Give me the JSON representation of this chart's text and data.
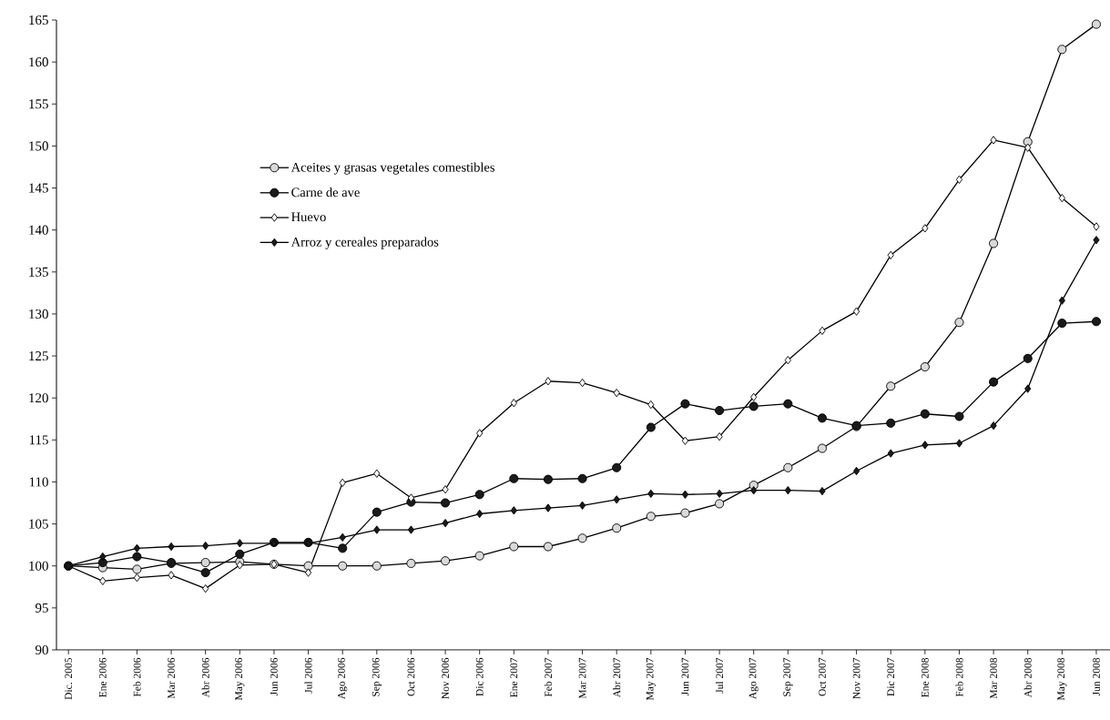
{
  "chart_data": {
    "type": "line",
    "categories": [
      "Dic. 2005",
      "Ene 2006",
      "Feb 2006",
      "Mar 2006",
      "Abr 2006",
      "May 2006",
      "Jun 2006",
      "Jul 2006",
      "Ago 2006",
      "Sep 2006",
      "Oct 2006",
      "Nov 2006",
      "Dic 2006",
      "Ene 2007",
      "Feb 2007",
      "Mar 2007",
      "Abr 2007",
      "May 2007",
      "Jun 2007",
      "Jul 2007",
      "Ago 2007",
      "Sep 2007",
      "Oct 2007",
      "Nov 2007",
      "Dic 2007",
      "Ene 2008",
      "Feb 2008",
      "Mar 2008",
      "Abr 2008",
      "May 2008",
      "Jun 2008"
    ],
    "series": [
      {
        "name": "Aceites y grasas vegetales comestibles",
        "color": "#d9d9d9",
        "marker": "circle",
        "values": [
          100,
          99.8,
          99.6,
          100.3,
          100.4,
          100.5,
          100.2,
          100.0,
          100.0,
          100.0,
          100.3,
          100.6,
          101.2,
          102.3,
          102.3,
          103.3,
          104.5,
          105.9,
          106.3,
          107.4,
          109.6,
          111.7,
          114.0,
          116.6,
          121.4,
          123.7,
          129.0,
          138.4,
          150.5,
          161.5,
          164.5
        ]
      },
      {
        "name": "Carne de ave",
        "color": "#1a1a1a",
        "marker": "circle",
        "values": [
          100,
          100.4,
          101.1,
          100.4,
          99.2,
          101.4,
          102.8,
          102.8,
          102.1,
          106.4,
          107.6,
          107.5,
          108.5,
          110.4,
          110.3,
          110.4,
          111.7,
          116.5,
          119.3,
          118.5,
          119.0,
          119.3,
          117.6,
          116.7,
          117.0,
          118.1,
          117.8,
          121.9,
          124.7,
          128.9,
          129.1
        ]
      },
      {
        "name": "Huevo",
        "color": "#ffffff",
        "marker": "diamond",
        "values": [
          100,
          98.2,
          98.6,
          98.9,
          97.3,
          100.1,
          100.2,
          99.2,
          109.9,
          111.0,
          108.1,
          109.1,
          115.8,
          119.4,
          122.0,
          121.8,
          120.6,
          119.2,
          114.9,
          115.4,
          120.1,
          124.5,
          128.0,
          130.3,
          137.0,
          140.2,
          146.0,
          150.7,
          149.8,
          143.8,
          140.4
        ]
      },
      {
        "name": "Arroz y cereales preparados",
        "color": "#1a1a1a",
        "marker": "diamond",
        "values": [
          100,
          101.1,
          102.1,
          102.3,
          102.4,
          102.7,
          102.7,
          102.7,
          103.4,
          104.3,
          104.3,
          105.1,
          106.2,
          106.6,
          106.9,
          107.2,
          107.9,
          108.6,
          108.5,
          108.6,
          109.0,
          109.0,
          108.9,
          111.3,
          113.4,
          114.4,
          114.6,
          116.7,
          121.1,
          131.6,
          138.8
        ]
      }
    ],
    "ylim": [
      90,
      165
    ],
    "yticks": [
      90,
      95,
      100,
      105,
      110,
      115,
      120,
      125,
      130,
      135,
      140,
      145,
      150,
      155,
      160,
      165
    ],
    "legend": "top left",
    "grid": false,
    "line_style": "solid"
  }
}
